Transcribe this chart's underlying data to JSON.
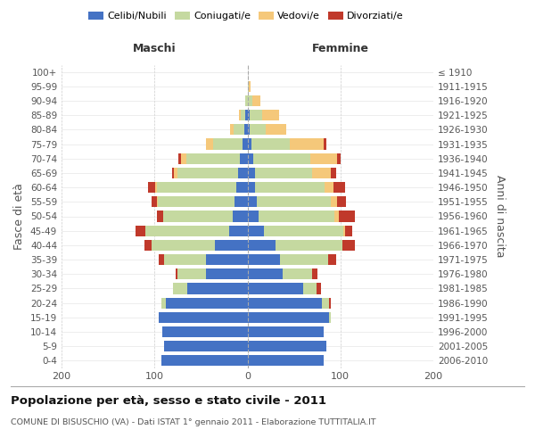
{
  "age_groups": [
    "0-4",
    "5-9",
    "10-14",
    "15-19",
    "20-24",
    "25-29",
    "30-34",
    "35-39",
    "40-44",
    "45-49",
    "50-54",
    "55-59",
    "60-64",
    "65-69",
    "70-74",
    "75-79",
    "80-84",
    "85-89",
    "90-94",
    "95-99",
    "100+"
  ],
  "birth_years": [
    "2006-2010",
    "2001-2005",
    "1996-2000",
    "1991-1995",
    "1986-1990",
    "1981-1985",
    "1976-1980",
    "1971-1975",
    "1966-1970",
    "1961-1965",
    "1956-1960",
    "1951-1955",
    "1946-1950",
    "1941-1945",
    "1936-1940",
    "1931-1935",
    "1926-1930",
    "1921-1925",
    "1916-1920",
    "1911-1915",
    "≤ 1910"
  ],
  "maschi": {
    "celibi": [
      93,
      90,
      92,
      95,
      88,
      65,
      45,
      45,
      35,
      20,
      16,
      14,
      12,
      10,
      8,
      5,
      3,
      2,
      0,
      0,
      0
    ],
    "coniugati": [
      0,
      0,
      0,
      0,
      5,
      15,
      30,
      45,
      68,
      90,
      75,
      82,
      85,
      65,
      58,
      32,
      12,
      5,
      2,
      0,
      0
    ],
    "vedovi": [
      0,
      0,
      0,
      0,
      0,
      0,
      0,
      0,
      0,
      0,
      0,
      1,
      2,
      4,
      5,
      8,
      4,
      2,
      0,
      0,
      0
    ],
    "divorziati": [
      0,
      0,
      0,
      0,
      0,
      0,
      2,
      5,
      8,
      10,
      6,
      6,
      8,
      2,
      3,
      0,
      0,
      0,
      0,
      0,
      0
    ]
  },
  "femmine": {
    "nubili": [
      82,
      85,
      82,
      88,
      80,
      60,
      38,
      35,
      30,
      18,
      12,
      10,
      8,
      8,
      6,
      4,
      2,
      2,
      0,
      0,
      0
    ],
    "coniugate": [
      0,
      0,
      0,
      2,
      8,
      14,
      32,
      52,
      72,
      85,
      82,
      80,
      75,
      62,
      62,
      42,
      18,
      14,
      5,
      1,
      0
    ],
    "vedove": [
      0,
      0,
      0,
      0,
      0,
      0,
      0,
      0,
      0,
      2,
      4,
      6,
      10,
      20,
      28,
      36,
      22,
      18,
      9,
      2,
      0
    ],
    "divorziate": [
      0,
      0,
      0,
      0,
      2,
      5,
      5,
      8,
      14,
      8,
      18,
      10,
      12,
      5,
      4,
      3,
      0,
      0,
      0,
      0,
      0
    ]
  },
  "colors": {
    "celibi_nubili": "#4472C4",
    "coniugati": "#C5D9A0",
    "vedovi": "#F5C87A",
    "divorziati": "#C0392B"
  },
  "xlim": 200,
  "title_main": "Popolazione per età, sesso e stato civile - 2011",
  "title_sub": "COMUNE DI BISUSCHIO (VA) - Dati ISTAT 1° gennaio 2011 - Elaborazione TUTTITALIA.IT",
  "ylabel_left": "Fasce di età",
  "ylabel_right": "Anni di nascita",
  "maschi_label": "Maschi",
  "femmine_label": "Femmine",
  "legend_labels": [
    "Celibi/Nubili",
    "Coniugati/e",
    "Vedovi/e",
    "Divorziati/e"
  ]
}
